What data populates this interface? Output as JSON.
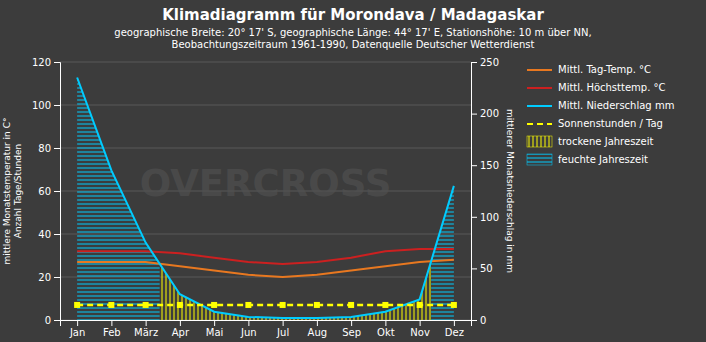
{
  "chart_data": {
    "type": "line",
    "title": "Klimadiagramm für Morondava / Madagaskar",
    "subtitle": [
      "geographische Breite: 20° 17' S, geographische Länge: 44° 17' E, Stationshöhe: 10 m über NN,",
      "Beobachtungszeitraum 1961-1990, Datenquelle Deutscher Wetterdienst"
    ],
    "categories": [
      "Jan",
      "Feb",
      "März",
      "Apr",
      "Mai",
      "Jun",
      "Jul",
      "Aug",
      "Sep",
      "Okt",
      "Nov",
      "Dez"
    ],
    "ylabel": "mittlere Monatstemperatur in C°\nAnzahl Tage/Stunden",
    "y2label": "mittlerer Monatsniederschlag in mm",
    "ylim": [
      0,
      120
    ],
    "yticks": [
      0,
      20,
      40,
      60,
      80,
      100,
      120
    ],
    "y2lim": [
      0,
      250
    ],
    "y2ticks": [
      0,
      50,
      100,
      150,
      200,
      250
    ],
    "grid": true,
    "legend": "right",
    "annotations": [
      {
        "text": "OVERCROSS",
        "color": "#505050"
      }
    ],
    "series": [
      {
        "name": "Mittl. Tag-Temp. °C",
        "type": "line",
        "color": "#e87820",
        "line_style": "solid",
        "values": [
          27,
          27,
          27,
          25,
          23,
          21,
          20,
          21,
          23,
          25,
          27,
          28
        ]
      },
      {
        "name": "Mittl. Höchsttemp. °C",
        "type": "line",
        "color": "#cc2020",
        "line_style": "solid",
        "values": [
          32,
          32,
          32,
          31,
          29,
          27,
          26,
          27,
          29,
          32,
          33,
          33
        ]
      },
      {
        "name": "Mittl. Niederschlag mm",
        "type": "line",
        "axis": "y2",
        "color": "#00ccff",
        "line_style": "solid",
        "values": [
          235,
          145,
          75,
          25,
          8,
          3,
          2,
          2,
          3,
          8,
          20,
          130
        ]
      },
      {
        "name": "Sonnenstunden / Tag",
        "type": "line",
        "color": "#ffff00",
        "line_style": "dashed",
        "marker": "square",
        "values": [
          7,
          7,
          7,
          7,
          7,
          7,
          7,
          7,
          7,
          7,
          7,
          7
        ]
      },
      {
        "name": "trockene Jahreszeit",
        "type": "area",
        "axis": "y2",
        "color": "#ffff00",
        "values": [
          null,
          null,
          null,
          25,
          8,
          3,
          2,
          2,
          3,
          8,
          20,
          null
        ]
      },
      {
        "name": "feuchte Jahreszeit",
        "type": "area",
        "axis": "y2",
        "color": "#00ccff",
        "values": [
          235,
          145,
          75,
          null,
          null,
          null,
          null,
          null,
          null,
          null,
          null,
          130
        ]
      }
    ]
  }
}
